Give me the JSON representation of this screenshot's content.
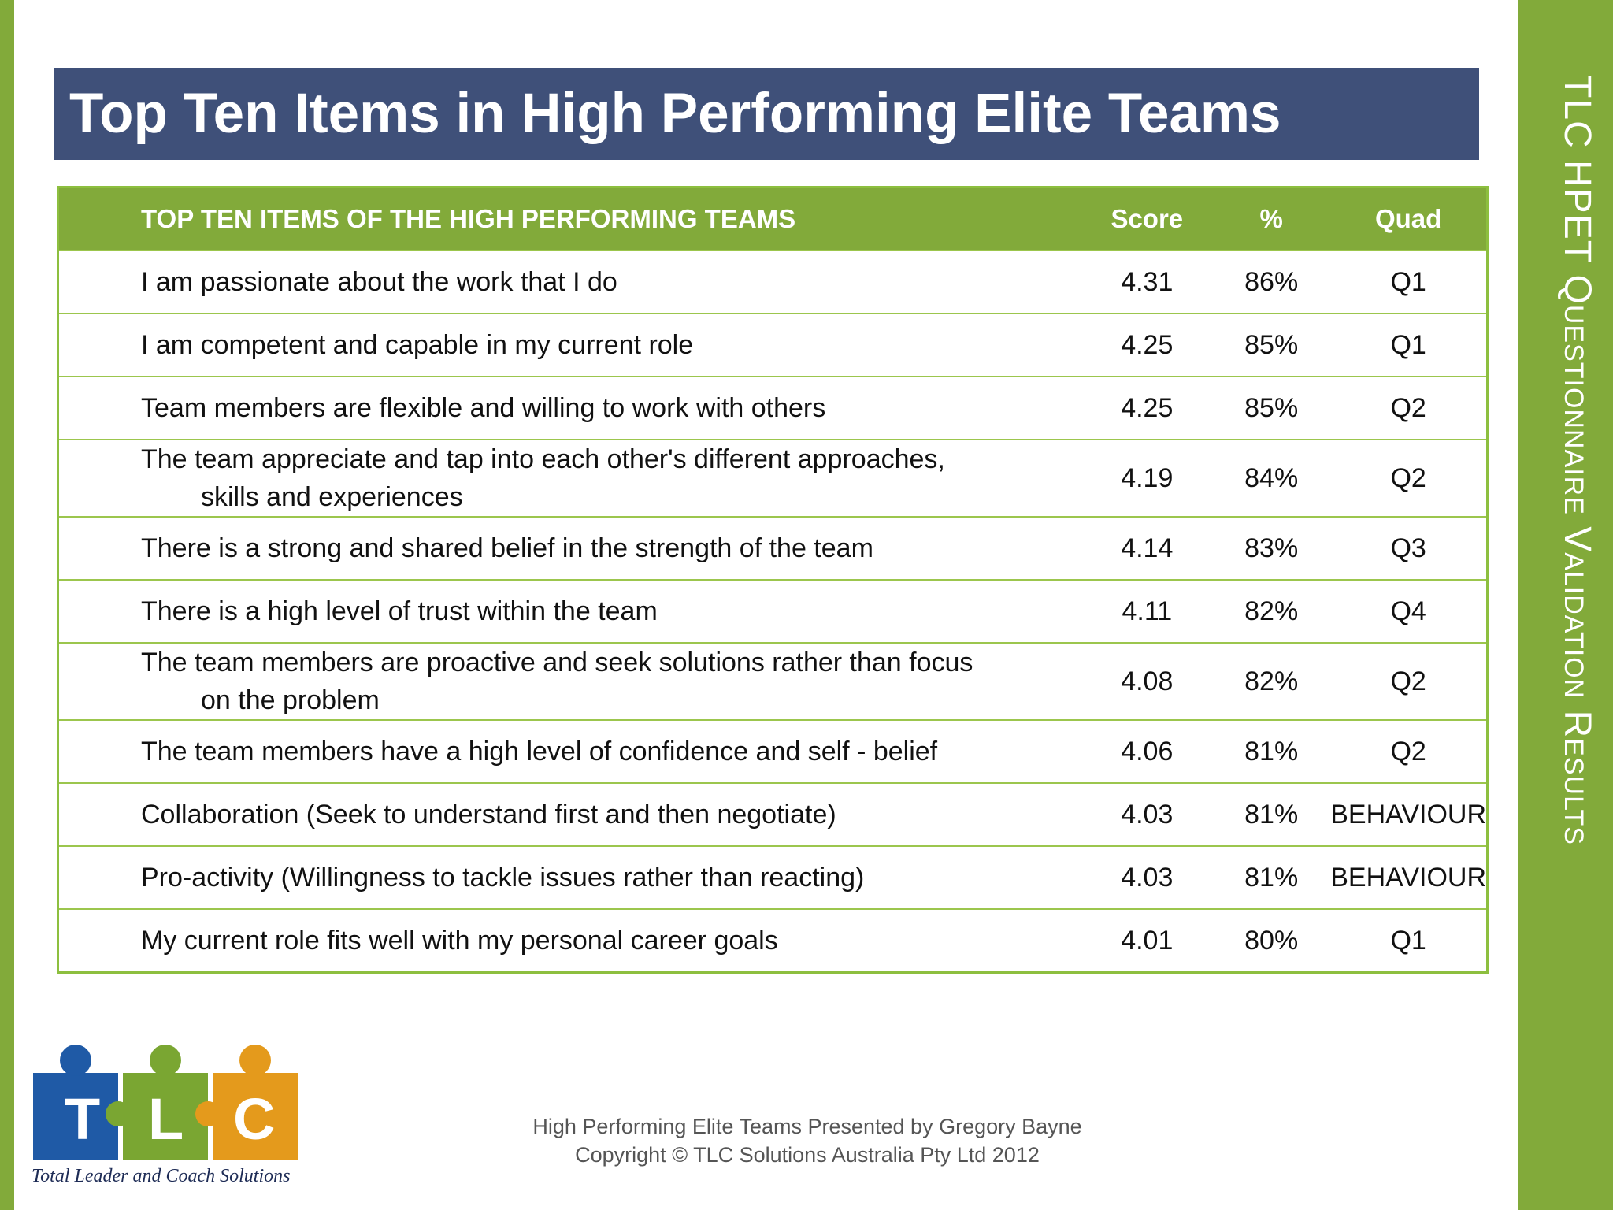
{
  "title": "Top Ten Items in High Performing Elite Teams",
  "side_title": "TLC HPET Questionnaire Validation Results",
  "table": {
    "headers": {
      "item": "TOP TEN ITEMS OF THE HIGH PERFORMING TEAMS",
      "score": "Score",
      "pct": "%",
      "quad": "Quad"
    },
    "rows": [
      {
        "item": "I am passionate about the work that I do",
        "score": "4.31",
        "pct": "86%",
        "quad": "Q1"
      },
      {
        "item": "I am competent and capable in my current role",
        "score": "4.25",
        "pct": "85%",
        "quad": "Q1"
      },
      {
        "item": "Team members are flexible and willing to work with others",
        "score": "4.25",
        "pct": "85%",
        "quad": "Q2"
      },
      {
        "item": "The team appreciate and tap into each other's different approaches,",
        "item_cont": "skills and experiences",
        "score": "4.19",
        "pct": "84%",
        "quad": "Q2"
      },
      {
        "item": "There is a strong and shared belief in the strength of the team",
        "score": "4.14",
        "pct": "83%",
        "quad": "Q3"
      },
      {
        "item": "There is a high level of trust within the team",
        "score": "4.11",
        "pct": "82%",
        "quad": "Q4"
      },
      {
        "item": "The team members are proactive and seek solutions rather than focus",
        "item_cont": "on the problem",
        "score": "4.08",
        "pct": "82%",
        "quad": "Q2"
      },
      {
        "item": "The team members have a high level of confidence and self - belief",
        "score": "4.06",
        "pct": "81%",
        "quad": "Q2"
      },
      {
        "item": "Collaboration (Seek to understand first and then negotiate)",
        "score": "4.03",
        "pct": "81%",
        "quad": "BEHAVIOUR"
      },
      {
        "item": "Pro-activity (Willingness to tackle issues rather than reacting)",
        "score": "4.03",
        "pct": "81%",
        "quad": "BEHAVIOUR"
      },
      {
        "item": "My current role fits well with my personal career goals",
        "score": "4.01",
        "pct": "80%",
        "quad": "Q1"
      }
    ]
  },
  "logo": {
    "letters": [
      "T",
      "L",
      "C"
    ],
    "caption": "Total Leader and Coach Solutions"
  },
  "footer": {
    "line1": "High Performing Elite Teams Presented by Gregory Bayne",
    "line2": "Copyright © TLC Solutions Australia Pty Ltd 2012"
  },
  "colors": {
    "green": "#82aa3a",
    "navy": "#3f5079",
    "puzzle_blue": "#1f5aa6",
    "puzzle_green": "#7aa632",
    "puzzle_orange": "#e49a1c"
  }
}
